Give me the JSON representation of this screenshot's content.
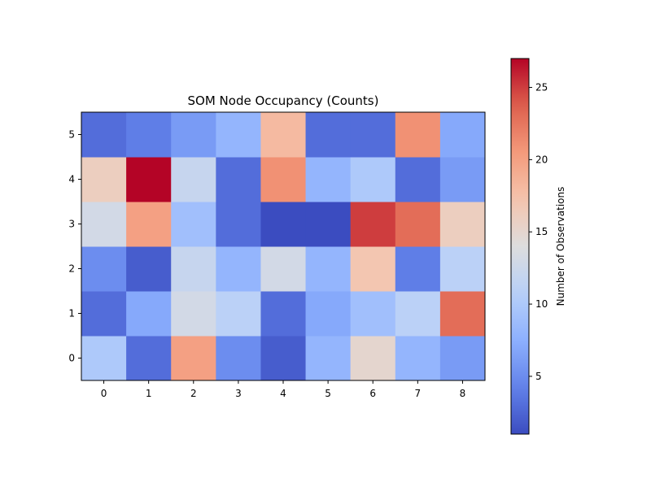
{
  "chart_data": {
    "type": "heatmap",
    "title": "SOM Node Occupancy (Counts)",
    "xlabel": "",
    "ylabel": "",
    "x_ticks": [
      "0",
      "1",
      "2",
      "3",
      "4",
      "5",
      "6",
      "7",
      "8"
    ],
    "y_ticks": [
      "0",
      "1",
      "2",
      "3",
      "4",
      "5"
    ],
    "y_order": "bottom-to-top",
    "colormap": "coolwarm",
    "vmin": 1,
    "vmax": 27,
    "values": [
      [
        10,
        3,
        20,
        5,
        2,
        8,
        15,
        8,
        6
      ],
      [
        3,
        7,
        13,
        11,
        3,
        7,
        9,
        11,
        23
      ],
      [
        5,
        2,
        12,
        8,
        13,
        8,
        17,
        4,
        11
      ],
      [
        13,
        20,
        9,
        3,
        1,
        1,
        25,
        23,
        16
      ],
      [
        16,
        27,
        12,
        3,
        21,
        8,
        10,
        3,
        6
      ],
      [
        3,
        4,
        6,
        8,
        18,
        3,
        3,
        21,
        7
      ]
    ],
    "colorbar": {
      "label": "Number of Observations",
      "ticks": [
        "5",
        "10",
        "15",
        "20",
        "25"
      ],
      "tick_values": [
        5,
        10,
        15,
        20,
        25
      ]
    }
  }
}
